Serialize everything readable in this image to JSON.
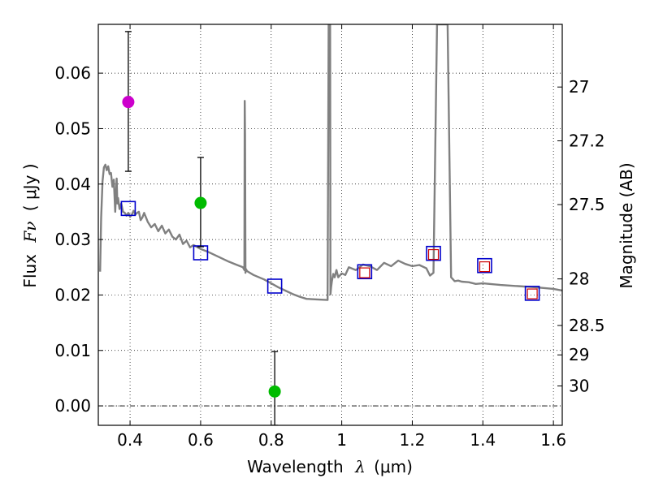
{
  "chart_data": {
    "type": "scatter",
    "xlabel_main": "Wavelength",
    "xlabel_symbol": "λ",
    "xlabel_units": "(μm)",
    "ylabel_main": "Flux",
    "ylabel_symbol": "Fν",
    "ylabel_units": "( μJy )",
    "y2label": "Magnitude (AB)",
    "xlim": [
      0.31,
      1.625
    ],
    "ylim": [
      -0.0035,
      0.0688
    ],
    "grid": true,
    "x_ticks": [
      0.4,
      0.6,
      0.8,
      1.0,
      1.2,
      1.4,
      1.6
    ],
    "x_tick_labels": [
      "0.4",
      "0.6",
      "0.8",
      "1",
      "1.2",
      "1.4",
      "1.6"
    ],
    "y_ticks": [
      0.0,
      0.01,
      0.02,
      0.03,
      0.04,
      0.05,
      0.06
    ],
    "y_tick_labels": [
      "0.00",
      "0.01",
      "0.02",
      "0.03",
      "0.04",
      "0.05",
      "0.06"
    ],
    "mag_ticks": [
      {
        "label": "27",
        "flux": 0.0575
      },
      {
        "label": "27.2",
        "flux": 0.0478
      },
      {
        "label": "27.5",
        "flux": 0.0363
      },
      {
        "label": "28",
        "flux": 0.0229
      },
      {
        "label": "28.5",
        "flux": 0.0145
      },
      {
        "label": "29",
        "flux": 0.0092
      },
      {
        "label": "30",
        "flux": 0.0036
      }
    ],
    "series": [
      {
        "name": "model-sed",
        "kind": "line",
        "color": "#808080",
        "x": [
          0.315,
          0.318,
          0.322,
          0.326,
          0.33,
          0.334,
          0.338,
          0.342,
          0.346,
          0.35,
          0.354,
          0.358,
          0.362,
          0.364,
          0.366,
          0.37,
          0.375,
          0.38,
          0.385,
          0.39,
          0.395,
          0.4,
          0.405,
          0.41,
          0.415,
          0.42,
          0.425,
          0.43,
          0.435,
          0.44,
          0.45,
          0.46,
          0.47,
          0.48,
          0.49,
          0.5,
          0.51,
          0.52,
          0.53,
          0.54,
          0.55,
          0.56,
          0.57,
          0.58,
          0.6,
          0.62,
          0.64,
          0.66,
          0.68,
          0.7,
          0.72,
          0.724,
          0.725,
          0.726,
          0.727,
          0.728,
          0.732,
          0.75,
          0.78,
          0.8,
          0.82,
          0.84,
          0.86,
          0.88,
          0.9,
          0.93,
          0.96,
          0.963,
          0.965,
          0.966,
          0.967,
          0.968,
          0.97,
          0.972,
          0.976,
          0.98,
          0.985,
          0.99,
          1.0,
          1.01,
          1.02,
          1.04,
          1.06,
          1.08,
          1.1,
          1.12,
          1.14,
          1.16,
          1.18,
          1.2,
          1.22,
          1.24,
          1.25,
          1.26,
          1.27,
          1.28,
          1.29,
          1.3,
          1.31,
          1.32,
          1.33,
          1.34,
          1.36,
          1.38,
          1.4,
          1.45,
          1.5,
          1.55,
          1.6,
          1.625
        ],
        "y": [
          0.0242,
          0.034,
          0.0405,
          0.043,
          0.0435,
          0.0425,
          0.0432,
          0.0418,
          0.042,
          0.0395,
          0.0408,
          0.035,
          0.041,
          0.0365,
          0.0375,
          0.0355,
          0.0365,
          0.035,
          0.0348,
          0.0343,
          0.0348,
          0.0341,
          0.0345,
          0.0352,
          0.0345,
          0.0348,
          0.035,
          0.0335,
          0.034,
          0.0348,
          0.0332,
          0.0322,
          0.0328,
          0.0315,
          0.0325,
          0.0311,
          0.0318,
          0.0305,
          0.03,
          0.0309,
          0.0292,
          0.0298,
          0.0286,
          0.029,
          0.0283,
          0.0278,
          0.0272,
          0.0266,
          0.026,
          0.0255,
          0.025,
          0.0245,
          0.055,
          0.049,
          0.024,
          0.0247,
          0.0243,
          0.0236,
          0.0228,
          0.0221,
          0.0214,
          0.0208,
          0.0202,
          0.0197,
          0.0193,
          0.0192,
          0.0191,
          0.0688,
          0.0688,
          0.0688,
          0.0688,
          0.0201,
          0.0215,
          0.0225,
          0.0238,
          0.0232,
          0.0245,
          0.0232,
          0.0239,
          0.0236,
          0.025,
          0.0245,
          0.0255,
          0.0252,
          0.0245,
          0.0258,
          0.0252,
          0.0262,
          0.0256,
          0.0252,
          0.0254,
          0.0248,
          0.0235,
          0.024,
          0.0688,
          0.0688,
          0.0688,
          0.0688,
          0.0232,
          0.0225,
          0.0226,
          0.0224,
          0.0223,
          0.022,
          0.0221,
          0.0218,
          0.0216,
          0.0214,
          0.0211,
          0.0208
        ]
      },
      {
        "name": "model-photometry",
        "kind": "open-square",
        "color": "#0000cc",
        "x": [
          0.395,
          0.6,
          0.81,
          1.065,
          1.26,
          1.405,
          1.54
        ],
        "y": [
          0.0356,
          0.0276,
          0.0216,
          0.0242,
          0.0275,
          0.0253,
          0.0203
        ]
      },
      {
        "name": "observed-photometry",
        "kind": "open-square-small",
        "color": "#cc0000",
        "x": [
          1.065,
          1.26,
          1.405,
          1.54
        ],
        "y": [
          0.024,
          0.0273,
          0.0251,
          0.0202
        ]
      },
      {
        "name": "detection-magenta",
        "kind": "filled-circle",
        "color": "#cc00cc",
        "x": [
          0.395
        ],
        "y": [
          0.0548
        ],
        "yerr_low": [
          0.0423
        ],
        "yerr_high": [
          0.0675
        ]
      },
      {
        "name": "detection-green",
        "kind": "filled-circle",
        "color": "#00bb00",
        "x": [
          0.6,
          0.81
        ],
        "y": [
          0.0366,
          0.0026
        ],
        "yerr_low": [
          0.0287,
          -0.0035
        ],
        "yerr_high": [
          0.0448,
          0.0098
        ]
      }
    ]
  }
}
